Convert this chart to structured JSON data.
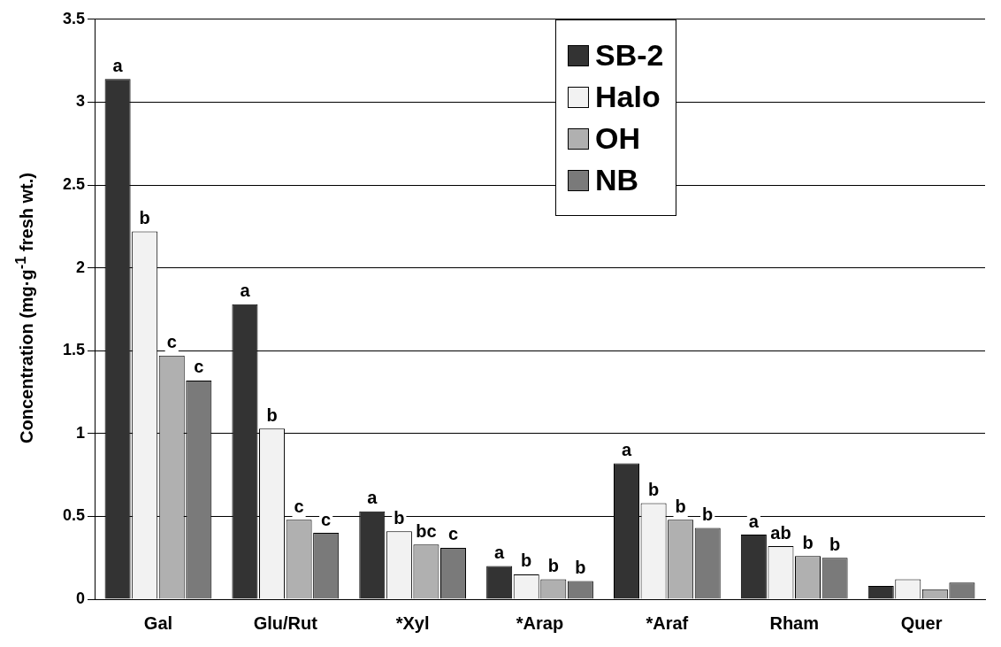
{
  "chart_data": {
    "type": "bar",
    "ylabel": "Concentration (mg·g$^{-1}$ fresh wt.)",
    "categories": [
      "Gal",
      "Glu/Rut",
      "*Xyl",
      "*Arap",
      "*Araf",
      "Rham",
      "Quer"
    ],
    "series": [
      {
        "name": "SB-2",
        "color": "#333333",
        "values": [
          3.14,
          1.78,
          0.53,
          0.2,
          0.82,
          0.39,
          0.08
        ],
        "value_labels": [
          "a",
          "a",
          "a",
          "a",
          "a",
          "a",
          null
        ]
      },
      {
        "name": "Halo",
        "color": "#f2f2f2",
        "values": [
          2.22,
          1.03,
          0.41,
          0.15,
          0.58,
          0.32,
          0.12
        ],
        "value_labels": [
          "b",
          "b",
          "b",
          "b",
          "b",
          "ab",
          null
        ]
      },
      {
        "name": "OH",
        "color": "#b0b0b0",
        "values": [
          1.47,
          0.48,
          0.33,
          0.12,
          0.48,
          0.26,
          0.06
        ],
        "value_labels": [
          "c",
          "c",
          "bc",
          "b",
          "b",
          "b",
          null
        ]
      },
      {
        "name": "NB",
        "color": "#7a7a7a",
        "values": [
          1.32,
          0.4,
          0.31,
          0.11,
          0.43,
          0.25,
          0.1
        ],
        "value_labels": [
          "c",
          "c",
          "c",
          "b",
          "b",
          "b",
          null
        ]
      }
    ],
    "ylim": [
      0,
      3.5
    ],
    "yticks": [
      0,
      0.5,
      1,
      1.5,
      2,
      2.5,
      3,
      3.5
    ],
    "grid": "y",
    "legend": "top right"
  }
}
